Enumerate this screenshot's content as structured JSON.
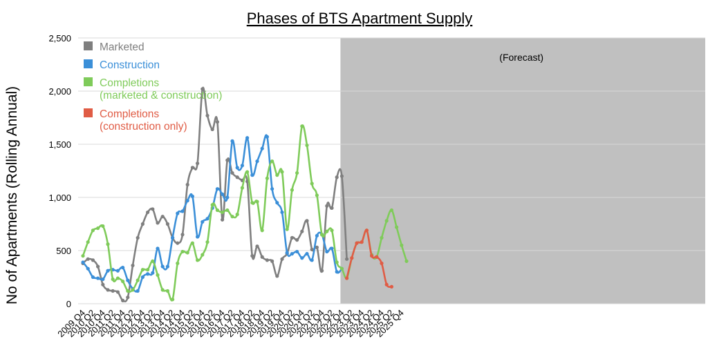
{
  "chart_data": {
    "type": "line",
    "title": "Phases of BTS Apartment Supply",
    "ylabel": "No of Apartments (Rolling Annual)",
    "xlabel": "",
    "ylim": [
      0,
      2500
    ],
    "yticks": [
      0,
      500,
      1000,
      1500,
      2000,
      2500
    ],
    "ytick_labels": [
      "0",
      "500",
      "1,000",
      "1,500",
      "2,000",
      "2,500"
    ],
    "grid": "horizontal",
    "legend_position": "top-left",
    "forecast_label": "(Forecast)",
    "forecast_start_index": 52,
    "forecast_shade_color": "#c0c0c0",
    "x_labels": [
      "2009 Q4",
      "2010 Q2",
      "2010 Q4",
      "2011 Q2",
      "2011 Q4",
      "2012 Q2",
      "2012 Q4",
      "2013 Q2",
      "2013 Q4",
      "2014 Q2",
      "2014 Q4",
      "2015 Q2",
      "2015 Q4",
      "2016 Q2",
      "2016 Q4",
      "2017 Q2",
      "2017 Q4",
      "2018 Q2",
      "2018 Q4",
      "2019 Q2",
      "2019 Q4",
      "2020 Q2",
      "2020 Q4",
      "2021 Q2",
      "2021 Q4",
      "2022 Q2",
      "2022 Q4",
      "2023 Q2",
      "2023 Q4",
      "2024 Q2",
      "2024 Q4",
      "2025 Q2",
      "2025 Q4"
    ],
    "series": [
      {
        "name": "Marketed",
        "color": "#7f7f7f",
        "start_index": 0,
        "values": [
          380,
          420,
          410,
          350,
          180,
          130,
          120,
          110,
          30,
          60,
          360,
          620,
          750,
          860,
          890,
          760,
          820,
          750,
          620,
          570,
          650,
          1120,
          1280,
          1320,
          2020,
          1770,
          1640,
          1710,
          790,
          1350,
          1230,
          1190,
          1160,
          1150,
          450,
          540,
          440,
          410,
          400,
          260,
          420,
          470,
          620,
          600,
          680,
          780,
          510,
          530,
          310,
          920,
          900,
          1190,
          1200,
          420
        ]
      },
      {
        "name": "Construction",
        "color": "#3b8fd8",
        "start_index": 0,
        "values": [
          390,
          330,
          250,
          240,
          230,
          310,
          320,
          310,
          340,
          220,
          140,
          120,
          250,
          280,
          290,
          520,
          350,
          350,
          620,
          850,
          870,
          970,
          1010,
          630,
          770,
          800,
          900,
          1080,
          1030,
          1000,
          1530,
          1280,
          1300,
          1560,
          1210,
          1340,
          1460,
          1570,
          1080,
          950,
          860,
          480,
          470,
          490,
          430,
          470,
          410,
          640,
          650,
          490,
          520,
          300,
          330
        ]
      },
      {
        "name": "Completions\n(marketed & construction)",
        "color": "#7fcb5a",
        "start_index": 0,
        "values": [
          450,
          580,
          690,
          710,
          730,
          560,
          230,
          240,
          210,
          120,
          130,
          220,
          320,
          320,
          400,
          270,
          130,
          120,
          40,
          380,
          490,
          480,
          570,
          410,
          460,
          580,
          930,
          880,
          860,
          880,
          820,
          840,
          1090,
          1240,
          950,
          960,
          690,
          1180,
          1340,
          1210,
          1240,
          700,
          1070,
          1230,
          1670,
          1490,
          1130,
          1020,
          650,
          680,
          690,
          390,
          330,
          240,
          430,
          570,
          580,
          690,
          460,
          440,
          620,
          780,
          880,
          720,
          550,
          400
        ]
      },
      {
        "name": "Completions\n(construction only)",
        "color": "#e05c45",
        "start_index": 53,
        "values": [
          240,
          430,
          570,
          580,
          690,
          450,
          440,
          380,
          180,
          160
        ]
      }
    ]
  }
}
